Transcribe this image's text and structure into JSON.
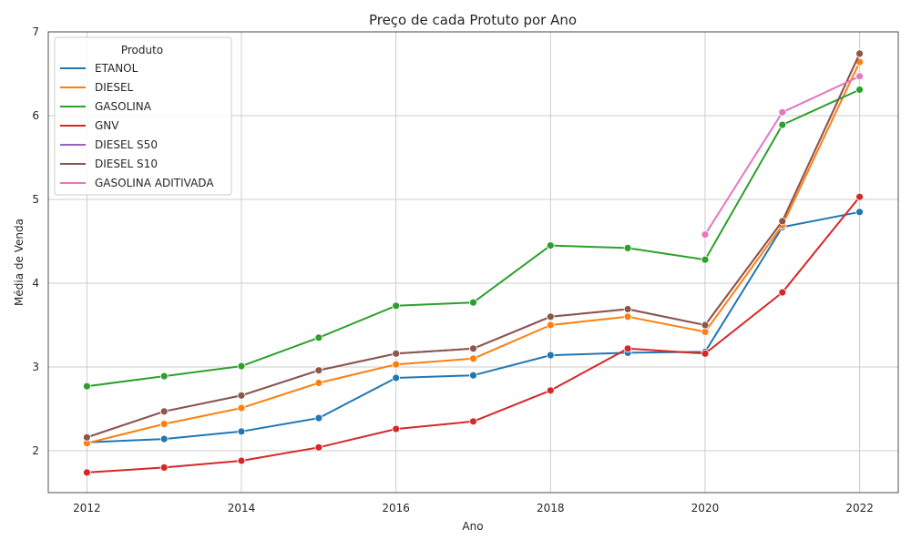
{
  "chart_data": {
    "type": "line",
    "title": "Preço de cada Protuto por Ano",
    "xlabel": "Ano",
    "ylabel": "Média de Venda",
    "xlim": [
      2011.5,
      2022.5
    ],
    "ylim": [
      1.5,
      7.0
    ],
    "x_ticks": [
      2012,
      2014,
      2016,
      2018,
      2020,
      2022
    ],
    "x_tick_labels": [
      "2012",
      "2014",
      "2016",
      "2018",
      "2020",
      "2022"
    ],
    "y_ticks": [
      2,
      3,
      4,
      5,
      6,
      7
    ],
    "y_tick_labels": [
      "2",
      "3",
      "4",
      "5",
      "6",
      "7"
    ],
    "grid": true,
    "legend": {
      "title": "Produto",
      "placement": "top-left"
    },
    "series": [
      {
        "name": "ETANOL",
        "color": "#1f77b4",
        "x": [
          2012,
          2013,
          2014,
          2015,
          2016,
          2017,
          2018,
          2019,
          2020,
          2021,
          2022
        ],
        "values": [
          2.1,
          2.14,
          2.23,
          2.39,
          2.87,
          2.9,
          3.14,
          3.17,
          3.18,
          4.67,
          4.85
        ]
      },
      {
        "name": "DIESEL",
        "color": "#ff7f0e",
        "x": [
          2012,
          2013,
          2014,
          2015,
          2016,
          2017,
          2018,
          2019,
          2020,
          2021,
          2022
        ],
        "values": [
          2.09,
          2.32,
          2.51,
          2.81,
          3.03,
          3.1,
          3.5,
          3.6,
          3.42,
          4.69,
          6.64
        ]
      },
      {
        "name": "GASOLINA",
        "color": "#2ca02c",
        "x": [
          2012,
          2013,
          2014,
          2015,
          2016,
          2017,
          2018,
          2019,
          2020,
          2021,
          2022
        ],
        "values": [
          2.77,
          2.89,
          3.01,
          3.35,
          3.73,
          3.77,
          4.45,
          4.42,
          4.28,
          5.89,
          6.31
        ]
      },
      {
        "name": "GNV",
        "color": "#d62728",
        "x": [
          2012,
          2013,
          2014,
          2015,
          2016,
          2017,
          2018,
          2019,
          2020,
          2021,
          2022
        ],
        "values": [
          1.74,
          1.8,
          1.88,
          2.04,
          2.26,
          2.35,
          2.72,
          3.22,
          3.16,
          3.89,
          5.03
        ]
      },
      {
        "name": "DIESEL S50",
        "color": "#9467bd",
        "x": [
          2012,
          2013,
          2014,
          2015,
          2016,
          2017,
          2018,
          2019,
          2020,
          2021,
          2022
        ],
        "values": [
          2.16,
          2.47,
          2.66,
          2.96,
          3.16,
          3.22,
          3.6,
          3.69,
          3.5,
          4.74,
          6.74
        ]
      },
      {
        "name": "DIESEL S10",
        "color": "#8c564b",
        "x": [
          2012,
          2013,
          2014,
          2015,
          2016,
          2017,
          2018,
          2019,
          2020,
          2021,
          2022
        ],
        "values": [
          2.16,
          2.47,
          2.66,
          2.96,
          3.16,
          3.22,
          3.6,
          3.69,
          3.5,
          4.74,
          6.74
        ]
      },
      {
        "name": "GASOLINA ADITIVADA",
        "color": "#e377c2",
        "x": [
          2020,
          2021,
          2022
        ],
        "values": [
          4.58,
          6.04,
          6.47
        ]
      }
    ]
  }
}
